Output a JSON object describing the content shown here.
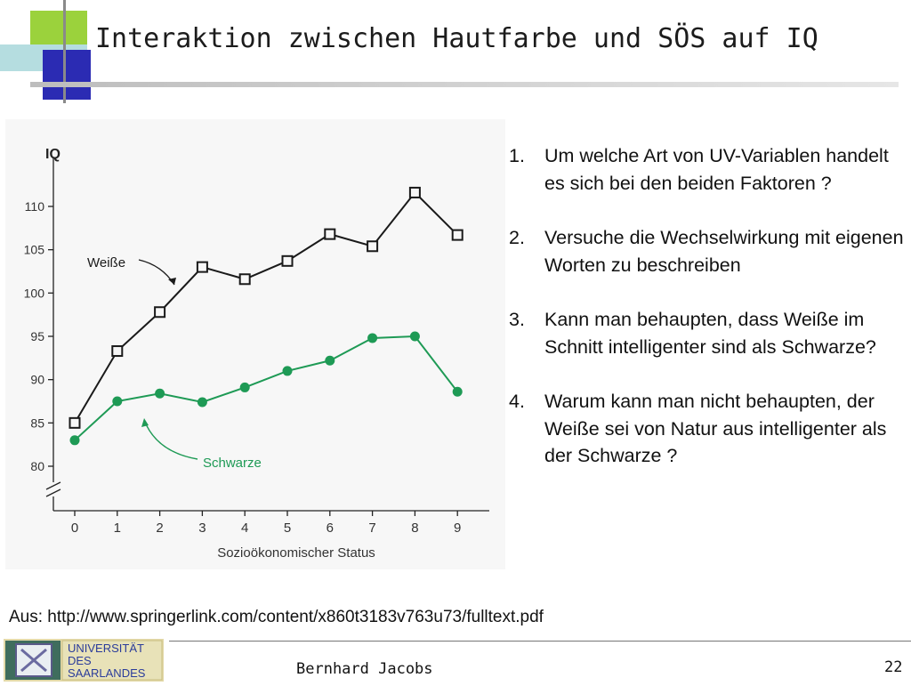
{
  "title": "Interaktion zwischen Hautfarbe und SÖS auf IQ",
  "questions": [
    {
      "num": "1.",
      "text": "Um welche Art von UV-Variablen handelt es sich bei den beiden Faktoren ?"
    },
    {
      "num": "2.",
      "text": "Versuche die Wechselwirkung mit eigenen Worten zu beschreiben"
    },
    {
      "num": "3.",
      "text": "Kann man behaupten, dass Weiße im Schnitt intelligenter sind als Schwarze?"
    },
    {
      "num": "4.",
      "text": "Warum kann man nicht behaupten, der Weiße sei von Natur aus intelligenter als der Schwarze ?"
    }
  ],
  "source": "Aus: http://www.springerlink.com/content/x860t3183v763u73/fulltext.pdf",
  "footer": {
    "author": "Bernhard Jacobs",
    "page": "22",
    "logo_text": [
      "UNIVERSITÄT",
      "DES",
      "SAARLANDES"
    ]
  },
  "colors": {
    "weisse": "#1a1a1a",
    "schwarze": "#1e9a55",
    "deco_green": "#9bd23c",
    "deco_blue": "#2b2bb3"
  },
  "chart_data": {
    "type": "line",
    "ylabel": "IQ",
    "xlabel": "Sozioökonomischer Status",
    "x": [
      0,
      1,
      2,
      3,
      4,
      5,
      6,
      7,
      8,
      9
    ],
    "ylim": [
      80,
      110
    ],
    "yticks": [
      80,
      85,
      90,
      95,
      100,
      105,
      110
    ],
    "axis_break": true,
    "grid": false,
    "series": [
      {
        "name": "Weiße",
        "marker": "open-square",
        "color": "#1a1a1a",
        "values": [
          85.0,
          93.3,
          97.8,
          103.0,
          101.6,
          103.7,
          106.8,
          105.4,
          111.6,
          106.7
        ]
      },
      {
        "name": "Schwarze",
        "marker": "filled-circle",
        "color": "#1e9a55",
        "values": [
          83.0,
          87.5,
          88.4,
          87.4,
          89.1,
          91.0,
          92.2,
          94.8,
          95.0,
          88.6
        ]
      }
    ]
  }
}
